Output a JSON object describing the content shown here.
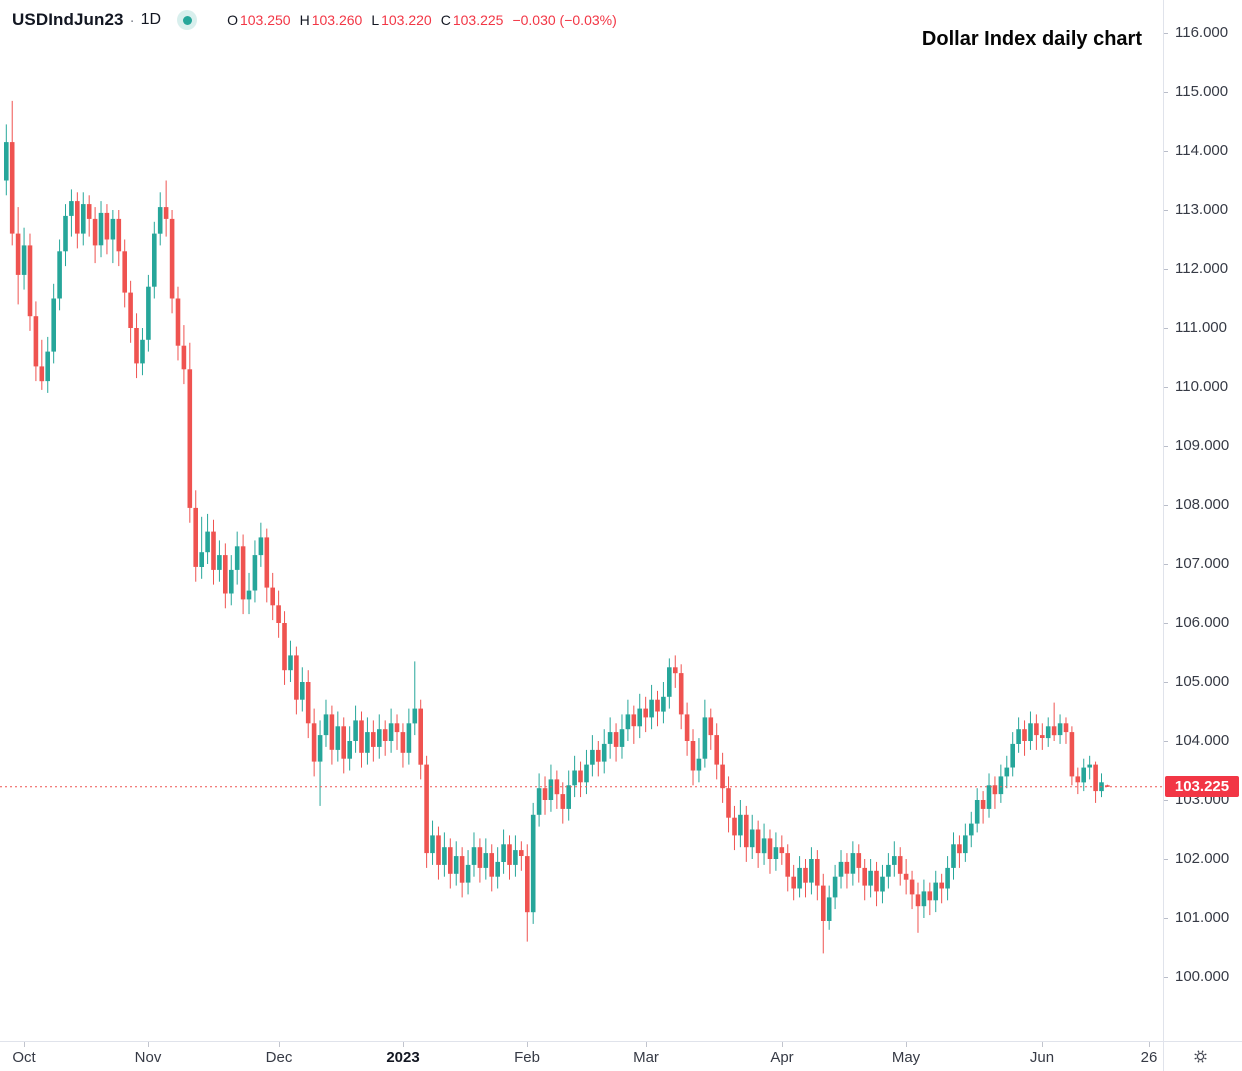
{
  "header": {
    "symbol": "USDIndJun23",
    "separator": "·",
    "interval": "1D",
    "ohlc": {
      "o_label": "O",
      "o": "103.250",
      "h_label": "H",
      "h": "103.260",
      "l_label": "L",
      "l": "103.220",
      "c_label": "C",
      "c": "103.225",
      "change": "−0.030 (−0.03%)"
    }
  },
  "annotation_title": "Dollar Index daily chart",
  "icons": {
    "market_status": "market-open-dot",
    "gear": "axis-settings-gear"
  },
  "colors": {
    "up": "#26a69a",
    "up_soft": "rgba(38,166,154,0.18)",
    "down": "#ef5350",
    "value_red": "#f23645",
    "price_label_bg": "#f23645",
    "price_line": "#ef5350",
    "axis_text": "#363a45",
    "axis_line": "#e0e3eb",
    "text": "#131722"
  },
  "axes": {
    "y_ticks": [
      "116.000",
      "115.000",
      "114.000",
      "113.000",
      "112.000",
      "111.000",
      "110.000",
      "109.000",
      "108.000",
      "107.000",
      "106.000",
      "105.000",
      "104.000",
      "103.000",
      "102.000",
      "101.000",
      "100.000"
    ],
    "price_label": "103.225",
    "x_ticks": [
      {
        "label": "Oct",
        "index": 3,
        "bold": false
      },
      {
        "label": "Nov",
        "index": 24,
        "bold": false
      },
      {
        "label": "Dec",
        "index": 46,
        "bold": false
      },
      {
        "label": "2023",
        "index": 67,
        "bold": true
      },
      {
        "label": "Feb",
        "index": 88,
        "bold": false
      },
      {
        "label": "Mar",
        "index": 108,
        "bold": false
      },
      {
        "label": "Apr",
        "index": 131,
        "bold": false
      },
      {
        "label": "May",
        "index": 152,
        "bold": false
      },
      {
        "label": "Jun",
        "index": 175,
        "bold": false
      },
      {
        "label": "26",
        "index": 193,
        "bold": false
      }
    ]
  },
  "chart_data": {
    "type": "candlestick",
    "title": "Dollar Index daily chart",
    "symbol": "USDIndJun23",
    "interval": "1D",
    "grid": false,
    "legend_position": "none",
    "last_quote": {
      "open": 103.25,
      "high": 103.26,
      "low": 103.22,
      "close": 103.225,
      "change": -0.03,
      "change_pct": "-0.03%"
    },
    "price_line": 103.225,
    "y_axis": {
      "visible_min": 98.9,
      "visible_max": 116.55,
      "tick_step": 1.0,
      "tick_format": "3dp"
    },
    "x_axis": {
      "period": "Oct 2022 – Jun 2023",
      "tick_labels": [
        "Oct",
        "Nov",
        "Dec",
        "2023",
        "Feb",
        "Mar",
        "Apr",
        "May",
        "Jun",
        "26"
      ]
    },
    "up_color": "#26a69a",
    "down_color": "#ef5350",
    "candles": [
      [
        113.5,
        114.45,
        113.25,
        114.15
      ],
      [
        114.15,
        114.85,
        112.4,
        112.6
      ],
      [
        112.6,
        113.05,
        111.4,
        111.9
      ],
      [
        111.9,
        112.7,
        111.65,
        112.4
      ],
      [
        112.4,
        112.6,
        110.95,
        111.2
      ],
      [
        111.2,
        111.45,
        110.1,
        110.35
      ],
      [
        110.35,
        110.8,
        109.95,
        110.1
      ],
      [
        110.1,
        110.85,
        109.9,
        110.6
      ],
      [
        110.6,
        111.75,
        110.4,
        111.5
      ],
      [
        111.5,
        112.5,
        111.3,
        112.3
      ],
      [
        112.3,
        113.1,
        112.05,
        112.9
      ],
      [
        112.9,
        113.35,
        112.55,
        113.15
      ],
      [
        113.15,
        113.3,
        112.35,
        112.6
      ],
      [
        112.6,
        113.3,
        112.4,
        113.1
      ],
      [
        113.1,
        113.25,
        112.55,
        112.85
      ],
      [
        112.85,
        113.05,
        112.1,
        112.4
      ],
      [
        112.4,
        113.15,
        112.2,
        112.95
      ],
      [
        112.95,
        113.1,
        112.25,
        112.5
      ],
      [
        112.5,
        113.0,
        112.1,
        112.85
      ],
      [
        112.85,
        113.0,
        112.05,
        112.3
      ],
      [
        112.3,
        112.5,
        111.35,
        111.6
      ],
      [
        111.6,
        111.8,
        110.75,
        111.0
      ],
      [
        111.0,
        111.25,
        110.15,
        110.4
      ],
      [
        110.4,
        111.0,
        110.2,
        110.8
      ],
      [
        110.8,
        111.9,
        110.6,
        111.7
      ],
      [
        111.7,
        112.8,
        111.5,
        112.6
      ],
      [
        112.6,
        113.3,
        112.4,
        113.05
      ],
      [
        113.05,
        113.5,
        112.55,
        112.85
      ],
      [
        112.85,
        113.0,
        111.25,
        111.5
      ],
      [
        111.5,
        111.7,
        110.45,
        110.7
      ],
      [
        110.7,
        111.05,
        110.05,
        110.3
      ],
      [
        110.3,
        110.75,
        107.7,
        107.95
      ],
      [
        107.95,
        108.25,
        106.7,
        106.95
      ],
      [
        106.95,
        107.8,
        106.75,
        107.2
      ],
      [
        107.2,
        107.85,
        107.0,
        107.55
      ],
      [
        107.55,
        107.75,
        106.65,
        106.9
      ],
      [
        106.9,
        107.4,
        106.7,
        107.15
      ],
      [
        107.15,
        107.35,
        106.25,
        106.5
      ],
      [
        106.5,
        107.15,
        106.3,
        106.9
      ],
      [
        106.9,
        107.55,
        106.65,
        107.3
      ],
      [
        107.3,
        107.5,
        106.15,
        106.4
      ],
      [
        106.4,
        106.85,
        106.15,
        106.55
      ],
      [
        106.55,
        107.4,
        106.35,
        107.15
      ],
      [
        107.15,
        107.7,
        106.95,
        107.45
      ],
      [
        107.45,
        107.6,
        106.35,
        106.6
      ],
      [
        106.6,
        106.85,
        106.05,
        106.3
      ],
      [
        106.3,
        106.55,
        105.75,
        106.0
      ],
      [
        106.0,
        106.2,
        104.95,
        105.2
      ],
      [
        105.2,
        105.7,
        105.0,
        105.45
      ],
      [
        105.45,
        105.6,
        104.45,
        104.7
      ],
      [
        104.7,
        105.25,
        104.5,
        105.0
      ],
      [
        105.0,
        105.2,
        104.05,
        104.3
      ],
      [
        104.3,
        104.55,
        103.4,
        103.65
      ],
      [
        103.65,
        104.35,
        102.9,
        104.1
      ],
      [
        104.1,
        104.7,
        103.9,
        104.45
      ],
      [
        104.45,
        104.6,
        103.6,
        103.85
      ],
      [
        103.85,
        104.5,
        103.65,
        104.25
      ],
      [
        104.25,
        104.4,
        103.45,
        103.7
      ],
      [
        103.7,
        104.25,
        103.5,
        104.0
      ],
      [
        104.0,
        104.6,
        103.8,
        104.35
      ],
      [
        104.35,
        104.5,
        103.55,
        103.8
      ],
      [
        103.8,
        104.4,
        103.6,
        104.15
      ],
      [
        104.15,
        104.35,
        103.65,
        103.9
      ],
      [
        103.9,
        104.45,
        103.7,
        104.2
      ],
      [
        104.2,
        104.35,
        103.75,
        104.0
      ],
      [
        104.0,
        104.55,
        103.8,
        104.3
      ],
      [
        104.3,
        104.45,
        103.85,
        104.15
      ],
      [
        104.15,
        104.3,
        103.55,
        103.8
      ],
      [
        103.8,
        104.55,
        103.6,
        104.3
      ],
      [
        104.3,
        105.35,
        104.1,
        104.55
      ],
      [
        104.55,
        104.7,
        103.35,
        103.6
      ],
      [
        103.6,
        103.75,
        101.85,
        102.1
      ],
      [
        102.1,
        102.65,
        101.9,
        102.4
      ],
      [
        102.4,
        102.55,
        101.65,
        101.9
      ],
      [
        101.9,
        102.45,
        101.7,
        102.2
      ],
      [
        102.2,
        102.35,
        101.5,
        101.75
      ],
      [
        101.75,
        102.3,
        101.55,
        102.05
      ],
      [
        102.05,
        102.2,
        101.35,
        101.6
      ],
      [
        101.6,
        102.15,
        101.4,
        101.9
      ],
      [
        101.9,
        102.45,
        101.7,
        102.2
      ],
      [
        102.2,
        102.35,
        101.6,
        101.85
      ],
      [
        101.85,
        102.35,
        101.65,
        102.1
      ],
      [
        102.1,
        102.25,
        101.45,
        101.7
      ],
      [
        101.7,
        102.2,
        101.5,
        101.95
      ],
      [
        101.95,
        102.5,
        101.75,
        102.25
      ],
      [
        102.25,
        102.4,
        101.65,
        101.9
      ],
      [
        101.9,
        102.4,
        101.7,
        102.15
      ],
      [
        102.15,
        102.3,
        101.8,
        102.05
      ],
      [
        102.05,
        102.25,
        100.6,
        101.1
      ],
      [
        101.1,
        102.95,
        100.9,
        102.75
      ],
      [
        102.75,
        103.45,
        102.55,
        103.2
      ],
      [
        103.2,
        103.4,
        102.75,
        103.0
      ],
      [
        103.0,
        103.6,
        102.8,
        103.35
      ],
      [
        103.35,
        103.5,
        102.85,
        103.1
      ],
      [
        103.1,
        103.3,
        102.6,
        102.85
      ],
      [
        102.85,
        103.5,
        102.65,
        103.25
      ],
      [
        103.25,
        103.75,
        103.05,
        103.5
      ],
      [
        103.5,
        103.65,
        103.05,
        103.3
      ],
      [
        103.3,
        103.85,
        103.1,
        103.6
      ],
      [
        103.6,
        104.1,
        103.4,
        103.85
      ],
      [
        103.85,
        104.0,
        103.4,
        103.65
      ],
      [
        103.65,
        104.2,
        103.45,
        103.95
      ],
      [
        103.95,
        104.4,
        103.7,
        104.15
      ],
      [
        104.15,
        104.3,
        103.65,
        103.9
      ],
      [
        103.9,
        104.45,
        103.7,
        104.2
      ],
      [
        104.2,
        104.7,
        104.0,
        104.45
      ],
      [
        104.45,
        104.6,
        103.95,
        104.25
      ],
      [
        104.25,
        104.8,
        104.05,
        104.55
      ],
      [
        104.55,
        104.75,
        104.15,
        104.4
      ],
      [
        104.4,
        104.95,
        104.2,
        104.7
      ],
      [
        104.7,
        104.85,
        104.25,
        104.5
      ],
      [
        104.5,
        105.0,
        104.3,
        104.75
      ],
      [
        104.75,
        105.4,
        104.55,
        105.25
      ],
      [
        105.25,
        105.45,
        104.9,
        105.15
      ],
      [
        105.15,
        105.3,
        104.2,
        104.45
      ],
      [
        104.45,
        104.65,
        103.75,
        104.0
      ],
      [
        104.0,
        104.2,
        103.25,
        103.5
      ],
      [
        103.5,
        104.05,
        103.3,
        103.7
      ],
      [
        103.7,
        104.7,
        103.55,
        104.4
      ],
      [
        104.4,
        104.55,
        103.85,
        104.1
      ],
      [
        104.1,
        104.3,
        103.35,
        103.6
      ],
      [
        103.6,
        103.8,
        102.95,
        103.2
      ],
      [
        103.2,
        103.4,
        102.45,
        102.7
      ],
      [
        102.7,
        102.9,
        102.15,
        102.4
      ],
      [
        102.4,
        103.0,
        102.2,
        102.75
      ],
      [
        102.75,
        102.9,
        101.95,
        102.2
      ],
      [
        102.2,
        102.75,
        102.0,
        102.5
      ],
      [
        102.5,
        102.65,
        101.85,
        102.1
      ],
      [
        102.1,
        102.6,
        101.9,
        102.35
      ],
      [
        102.35,
        102.5,
        101.75,
        102.0
      ],
      [
        102.0,
        102.45,
        101.8,
        102.2
      ],
      [
        102.2,
        102.4,
        101.9,
        102.1
      ],
      [
        102.1,
        102.25,
        101.45,
        101.7
      ],
      [
        101.7,
        101.9,
        101.3,
        101.5
      ],
      [
        101.5,
        102.05,
        101.35,
        101.85
      ],
      [
        101.85,
        102.0,
        101.35,
        101.6
      ],
      [
        101.6,
        102.2,
        101.4,
        102.0
      ],
      [
        102.0,
        102.15,
        101.3,
        101.55
      ],
      [
        101.55,
        101.75,
        100.4,
        100.95
      ],
      [
        100.95,
        101.55,
        100.8,
        101.35
      ],
      [
        101.35,
        101.9,
        101.15,
        101.7
      ],
      [
        101.7,
        102.15,
        101.5,
        101.95
      ],
      [
        101.95,
        102.1,
        101.5,
        101.75
      ],
      [
        101.75,
        102.3,
        101.55,
        102.1
      ],
      [
        102.1,
        102.25,
        101.6,
        101.85
      ],
      [
        101.85,
        102.0,
        101.3,
        101.55
      ],
      [
        101.55,
        102.0,
        101.35,
        101.8
      ],
      [
        101.8,
        101.95,
        101.2,
        101.45
      ],
      [
        101.45,
        101.9,
        101.25,
        101.7
      ],
      [
        101.7,
        102.1,
        101.5,
        101.9
      ],
      [
        101.9,
        102.3,
        101.7,
        102.05
      ],
      [
        102.05,
        102.2,
        101.55,
        101.75
      ],
      [
        101.75,
        102.0,
        101.4,
        101.65
      ],
      [
        101.65,
        101.8,
        101.15,
        101.4
      ],
      [
        101.4,
        101.6,
        100.75,
        101.2
      ],
      [
        101.2,
        101.65,
        101.0,
        101.45
      ],
      [
        101.45,
        101.6,
        101.05,
        101.3
      ],
      [
        101.3,
        101.8,
        101.1,
        101.6
      ],
      [
        101.6,
        101.75,
        101.25,
        101.5
      ],
      [
        101.5,
        102.05,
        101.3,
        101.85
      ],
      [
        101.85,
        102.45,
        101.65,
        102.25
      ],
      [
        102.25,
        102.4,
        101.85,
        102.1
      ],
      [
        102.1,
        102.6,
        101.95,
        102.4
      ],
      [
        102.4,
        102.8,
        102.2,
        102.6
      ],
      [
        102.6,
        103.2,
        102.45,
        103.0
      ],
      [
        103.0,
        103.15,
        102.6,
        102.85
      ],
      [
        102.85,
        103.45,
        102.7,
        103.25
      ],
      [
        103.25,
        103.4,
        102.85,
        103.1
      ],
      [
        103.1,
        103.6,
        102.95,
        103.4
      ],
      [
        103.4,
        103.75,
        103.2,
        103.55
      ],
      [
        103.55,
        104.15,
        103.4,
        103.95
      ],
      [
        103.95,
        104.4,
        103.8,
        104.2
      ],
      [
        104.2,
        104.35,
        103.75,
        104.0
      ],
      [
        104.0,
        104.5,
        103.85,
        104.3
      ],
      [
        104.3,
        104.45,
        103.85,
        104.1
      ],
      [
        104.1,
        104.3,
        103.85,
        104.05
      ],
      [
        104.05,
        104.4,
        103.9,
        104.25
      ],
      [
        104.25,
        104.65,
        104.0,
        104.1
      ],
      [
        104.1,
        104.45,
        103.95,
        104.3
      ],
      [
        104.3,
        104.4,
        103.95,
        104.15
      ],
      [
        104.15,
        104.25,
        103.25,
        103.4
      ],
      [
        103.4,
        103.55,
        103.1,
        103.3
      ],
      [
        103.3,
        103.7,
        103.15,
        103.55
      ],
      [
        103.55,
        103.75,
        103.35,
        103.6
      ],
      [
        103.6,
        103.65,
        102.95,
        103.15
      ],
      [
        103.15,
        103.45,
        103.05,
        103.3
      ],
      [
        103.25,
        103.26,
        103.22,
        103.225
      ]
    ]
  }
}
